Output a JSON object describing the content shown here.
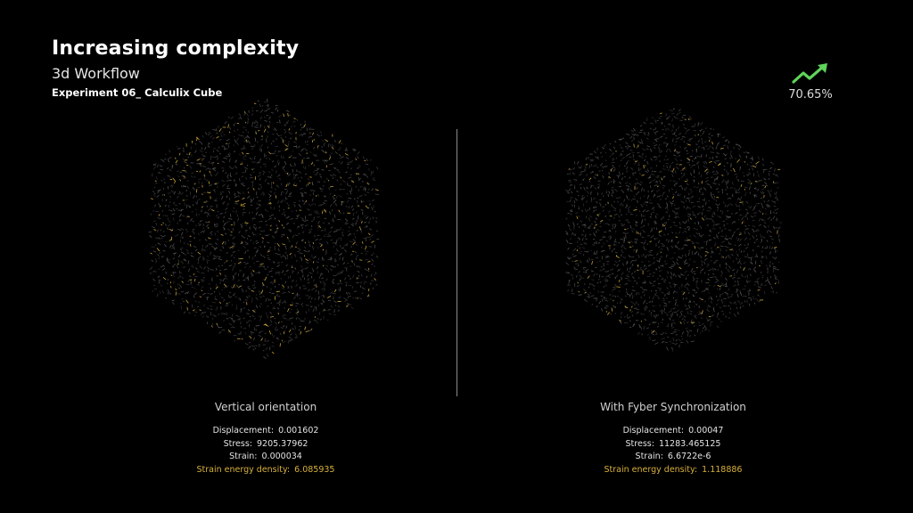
{
  "slide": {
    "title": "Increasing complexity",
    "subtitle": "3d Workflow",
    "caption": "Experiment 06_ Calculix Cube"
  },
  "trend": {
    "icon": "trending-up-arrow-icon",
    "value": "70.65%",
    "color": "#5fd35a"
  },
  "panels": [
    {
      "title": "Vertical orientation",
      "stats": [
        {
          "label": "Displacement:",
          "value": "0.001602"
        },
        {
          "label": "Stress:",
          "value": "9205.37962"
        },
        {
          "label": "Strain:",
          "value": "0.000034"
        },
        {
          "label": "Strain energy density:",
          "value": "6.085935"
        }
      ]
    },
    {
      "title": "With Fyber Synchronization",
      "stats": [
        {
          "label": "Displacement:",
          "value": "0.00047"
        },
        {
          "label": "Stress:",
          "value": "11283.465125"
        },
        {
          "label": "Strain:",
          "value": "6.6722e-6"
        },
        {
          "label": "Strain energy density:",
          "value": "1.118886"
        }
      ]
    }
  ],
  "colors": {
    "background": "#000000",
    "mesh_gray": "#6e6e6e",
    "mesh_yellow": "#d7b03a",
    "highlight": "#d7b03a"
  }
}
